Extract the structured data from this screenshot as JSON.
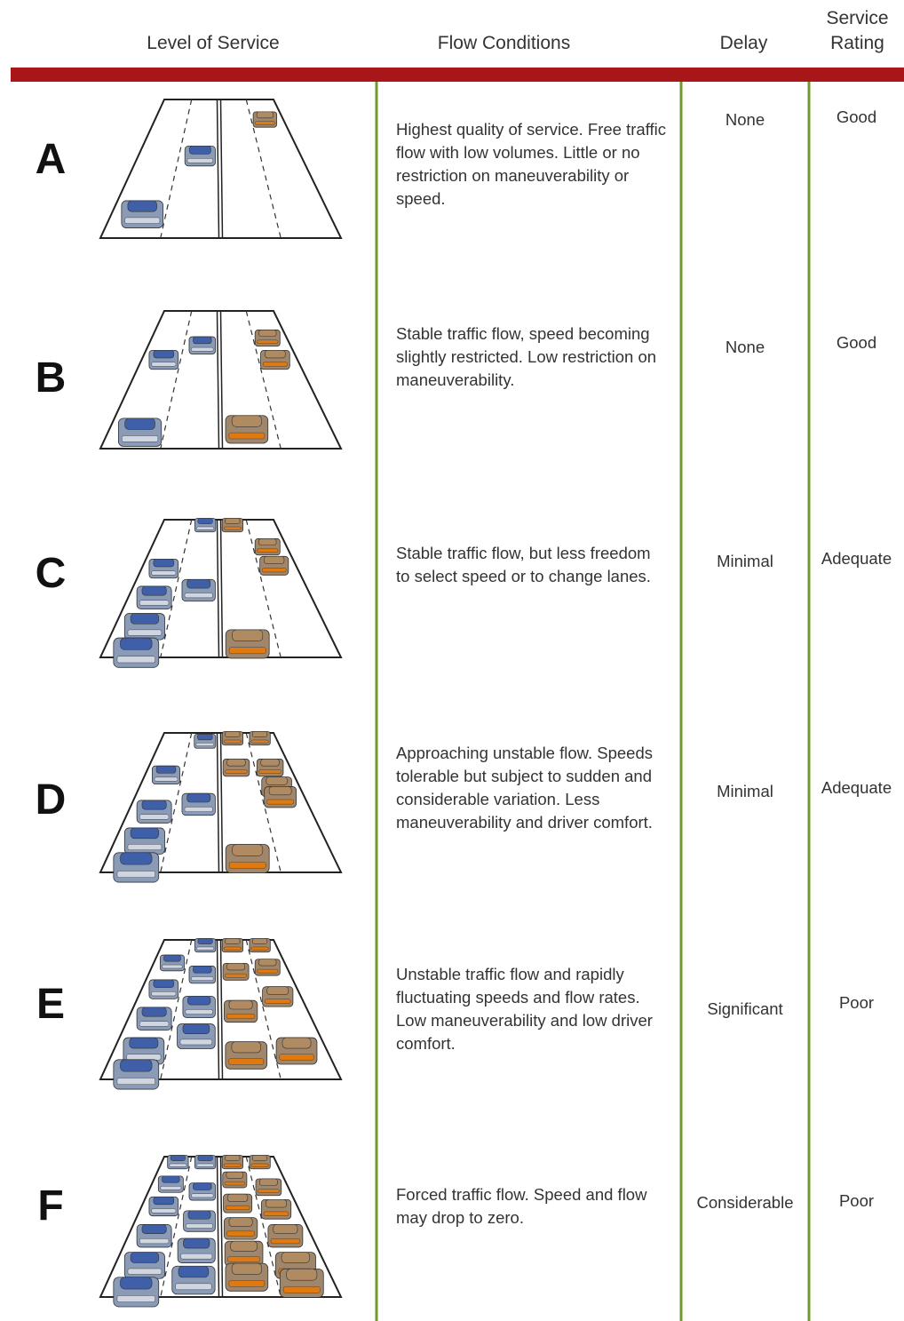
{
  "table": {
    "headers": [
      "Level of Service",
      "Flow Conditions",
      "Delay",
      "Service Rating"
    ],
    "rows": [
      {
        "level": "A",
        "flow": "Highest quality of service. Free traffic flow with low volumes. Little or no restriction on maneuverability or speed.",
        "delay": "None",
        "rating": "Good"
      },
      {
        "level": "B",
        "flow": "Stable traffic flow, speed becoming slightly restricted. Low restriction on maneuverability.",
        "delay": "None",
        "rating": "Good"
      },
      {
        "level": "C",
        "flow": "Stable traffic flow, but less freedom to select speed or to change lanes.",
        "delay": "Minimal",
        "rating": "Adequate"
      },
      {
        "level": "D",
        "flow": "Approaching unstable flow. Speeds tolerable but subject to sudden and considerable variation. Less maneuverability and driver comfort.",
        "delay": "Minimal",
        "rating": "Adequate"
      },
      {
        "level": "E",
        "flow": "Unstable traffic flow and rapidly fluctuating speeds and flow rates. Low maneuverability and low driver comfort.",
        "delay": "Significant",
        "rating": "Poor"
      },
      {
        "level": "F",
        "flow": "Forced traffic flow. Speed and flow may drop to zero.",
        "delay": "Considerable",
        "rating": "Poor"
      }
    ]
  }
}
